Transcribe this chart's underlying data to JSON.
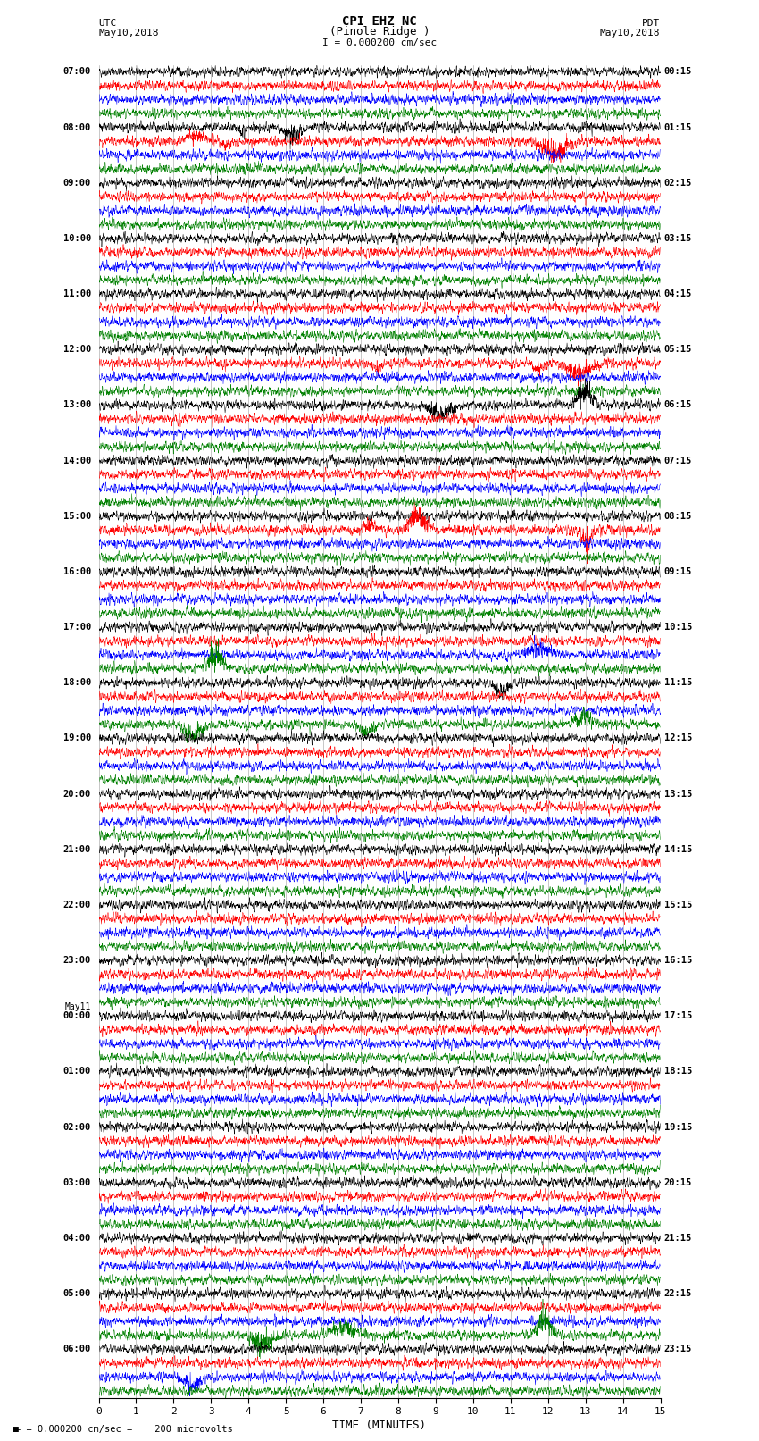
{
  "title_line1": "CPI EHZ NC",
  "title_line2": "(Pinole Ridge )",
  "scale_label": "I = 0.000200 cm/sec",
  "footer_label": "= 0.000200 cm/sec =    200 microvolts",
  "left_label": "UTC",
  "left_date": "May10,2018",
  "right_label": "PDT",
  "right_date": "May10,2018",
  "xlabel": "TIME (MINUTES)",
  "utc_label_list": [
    "07:00",
    "08:00",
    "09:00",
    "10:00",
    "11:00",
    "12:00",
    "13:00",
    "14:00",
    "15:00",
    "16:00",
    "17:00",
    "18:00",
    "19:00",
    "20:00",
    "21:00",
    "22:00",
    "23:00",
    "00:00",
    "01:00",
    "02:00",
    "03:00",
    "04:00",
    "05:00",
    "06:00"
  ],
  "pdt_label_list": [
    "00:15",
    "01:15",
    "02:15",
    "03:15",
    "04:15",
    "05:15",
    "06:15",
    "07:15",
    "08:15",
    "09:15",
    "10:15",
    "11:15",
    "12:15",
    "13:15",
    "14:15",
    "15:15",
    "16:15",
    "17:15",
    "18:15",
    "19:15",
    "20:15",
    "21:15",
    "22:15",
    "23:15"
  ],
  "n_hour_groups": 24,
  "traces_per_group": 4,
  "row_colors": [
    "black",
    "red",
    "blue",
    "green"
  ],
  "bg_color": "white",
  "xmin": 0,
  "xmax": 15,
  "xticks": [
    0,
    1,
    2,
    3,
    4,
    5,
    6,
    7,
    8,
    9,
    10,
    11,
    12,
    13,
    14,
    15
  ],
  "noise_scale": 0.28,
  "seed": 42,
  "figwidth": 8.5,
  "figheight": 16.13,
  "gridline_color": "#888888",
  "gridline_lw": 0.4
}
